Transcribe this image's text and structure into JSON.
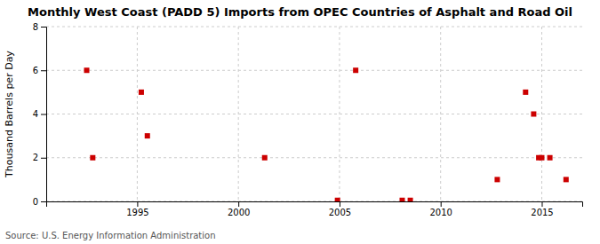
{
  "chart_data": {
    "type": "scatter",
    "title": "Monthly West Coast (PADD 5) Imports from OPEC Countries of Asphalt and Road Oil",
    "ylabel": "Thousand Barrels per Day",
    "source": "Source: U.S. Energy Information Administration",
    "x": [
      1992.5,
      1992.8,
      1995.2,
      1995.5,
      2001.3,
      2004.9,
      2005.8,
      2008.1,
      2008.5,
      2012.8,
      2014.2,
      2014.6,
      2014.85,
      2015.0,
      2015.4,
      2016.2
    ],
    "values": [
      6.0,
      2.0,
      5.0,
      3.0,
      2.0,
      0.05,
      6.0,
      0.05,
      0.05,
      1.0,
      5.0,
      4.0,
      2.0,
      2.0,
      2.0,
      1.0
    ],
    "color": "#cc0000",
    "marker": "square",
    "xlim": [
      1990.5,
      2017.0
    ],
    "xticks": [
      1995,
      2000,
      2005,
      2010,
      2015
    ],
    "ylim": [
      0,
      8
    ],
    "yticks": [
      0,
      2,
      4,
      6,
      8
    ],
    "grid": true
  }
}
